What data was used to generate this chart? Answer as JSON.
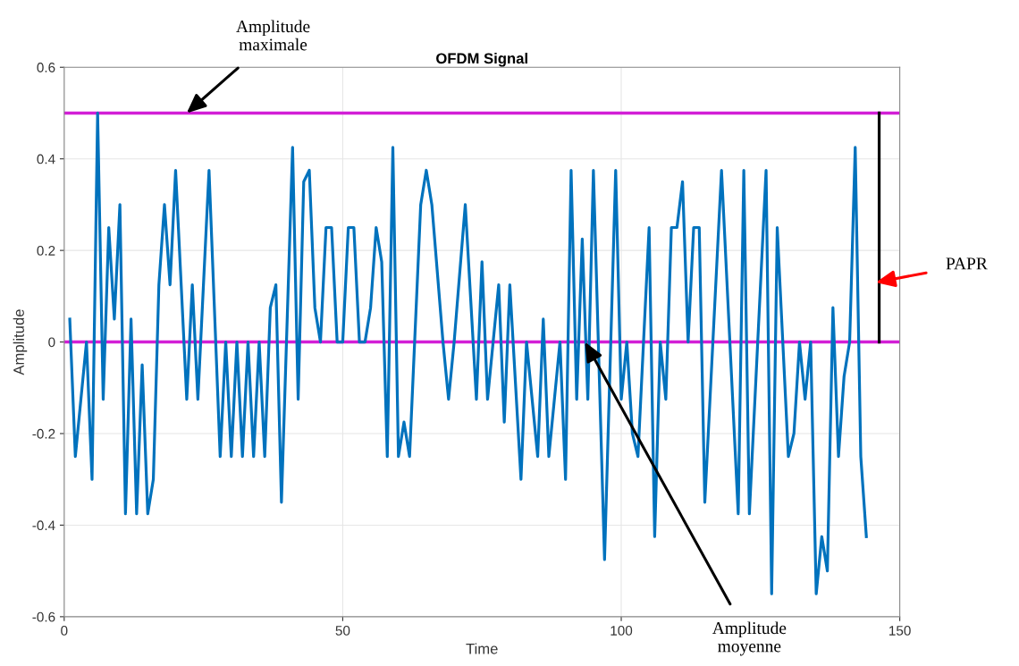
{
  "chart_data": {
    "type": "line",
    "title": "OFDM Signal",
    "xlabel": "Time",
    "ylabel": "Amplitude",
    "xlim": [
      0,
      150
    ],
    "xticks": [
      0,
      50,
      100,
      150
    ],
    "ylim": [
      -0.6,
      0.6
    ],
    "yticks": [
      -0.6,
      -0.4,
      -0.2,
      0,
      0.2,
      0.4,
      0.6
    ],
    "grid": true,
    "legend": false,
    "marker": "none",
    "line_style": "solid",
    "series": [
      {
        "color": "#0072bd",
        "x": [
          1,
          2,
          4,
          5,
          6,
          7,
          8,
          9,
          10,
          11,
          12,
          13,
          14,
          15,
          16,
          17,
          18,
          19,
          20,
          22,
          23,
          24,
          26,
          28,
          29,
          30,
          31,
          32,
          33,
          34,
          35,
          36,
          37,
          38,
          39,
          41,
          42,
          43,
          44,
          45,
          46,
          47,
          48,
          49,
          50,
          51,
          52,
          53,
          54,
          55,
          56,
          57,
          58,
          59,
          60,
          61,
          62,
          64,
          65,
          66,
          68,
          69,
          70,
          72,
          74,
          75,
          76,
          78,
          79,
          80,
          82,
          83,
          85,
          86,
          87,
          89,
          90,
          91,
          92,
          93,
          94,
          95,
          97,
          99,
          100,
          101,
          102,
          103,
          105,
          106,
          107,
          108,
          109,
          110,
          111,
          112,
          113,
          114,
          115,
          118,
          121,
          122,
          123,
          126,
          127,
          128,
          130,
          131,
          132,
          133,
          134,
          135,
          136,
          137,
          138,
          139,
          140,
          141,
          142,
          143,
          144
        ],
        "values": [
          0.05,
          -0.25,
          0,
          -0.3,
          0.5,
          -0.125,
          0.25,
          0.05,
          0.3,
          -0.375,
          0.05,
          -0.375,
          -0.05,
          -0.375,
          -0.3,
          0.125,
          0.3,
          0.125,
          0.375,
          -0.125,
          0.125,
          -0.125,
          0.375,
          -0.25,
          0,
          -0.25,
          0,
          -0.25,
          0,
          -0.25,
          0,
          -0.25,
          0.075,
          0.125,
          -0.35,
          0.425,
          -0.125,
          0.35,
          0.375,
          0.075,
          0,
          0.25,
          0.25,
          0,
          0,
          0.25,
          0.25,
          0,
          0,
          0.075,
          0.25,
          0.175,
          -0.25,
          0.425,
          -0.25,
          -0.175,
          -0.25,
          0.3,
          0.375,
          0.3,
          0,
          -0.125,
          0,
          0.3,
          -0.125,
          0.175,
          -0.125,
          0.125,
          -0.175,
          0.125,
          -0.3,
          0,
          -0.25,
          0.05,
          -0.25,
          0,
          -0.3,
          0.375,
          -0.125,
          0.225,
          -0.125,
          0.375,
          -0.475,
          0.375,
          -0.125,
          0,
          -0.2,
          -0.25,
          0.25,
          -0.425,
          0,
          -0.125,
          0.25,
          0.25,
          0.35,
          0,
          0.25,
          0.25,
          -0.35,
          0.375,
          -0.375,
          0.375,
          -0.375,
          0.375,
          -0.55,
          0.25,
          -0.25,
          -0.2,
          0,
          -0.125,
          0,
          -0.55,
          -0.425,
          -0.5,
          0.075,
          -0.25,
          -0.075,
          0,
          0.425,
          -0.25,
          -0.425
        ]
      },
      {
        "color": "#000000",
        "x": [
          146.3,
          146.3
        ],
        "values": [
          0,
          0.5
        ]
      }
    ],
    "ref_lines": [
      {
        "axis": "y",
        "value": 0.5,
        "color": "#d21fd6"
      },
      {
        "axis": "y",
        "value": 0,
        "color": "#d21fd6"
      }
    ],
    "annotations": [
      {
        "text": "Amplitude\nmaximale",
        "x": 22,
        "y": 0.5
      },
      {
        "text": "Amplitude\nmoyenne",
        "x": 93.5,
        "y": 0
      },
      {
        "text": "PAPR",
        "x": 145.7,
        "y": 0.13
      }
    ]
  }
}
